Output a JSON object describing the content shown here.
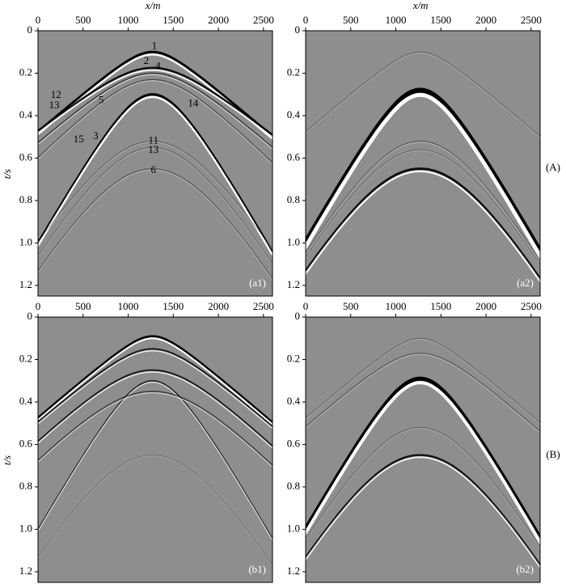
{
  "chart_data": [
    {
      "type": "image",
      "panel_label": "(a1)",
      "xlabel": "x/m",
      "ylabel": "t/s",
      "xlim": [
        0,
        2600
      ],
      "ylim": [
        0,
        1.25
      ],
      "xticks": [
        0,
        500,
        1000,
        1500,
        2000,
        2500
      ],
      "yticks": [
        0,
        0.2,
        0.4,
        0.6,
        0.8,
        {
          "value": 1,
          "label": "1.0"
        },
        1.2
      ],
      "annotations": [
        "1",
        "2",
        "4",
        "12",
        "13",
        "5",
        "14",
        "3",
        "15",
        "11",
        "13",
        "6"
      ]
    },
    {
      "type": "image",
      "panel_label": "(a2)",
      "xlabel": "x/m",
      "xlim": [
        0,
        2600
      ],
      "ylim": [
        0,
        1.25
      ],
      "xticks": [
        0,
        500,
        1000,
        1500,
        2000,
        2500
      ],
      "yticks": [
        0,
        0.2,
        0.4,
        0.6,
        0.8,
        {
          "value": 1,
          "label": "1.0"
        },
        1.2
      ]
    },
    {
      "type": "image",
      "panel_label": "(b1)",
      "ylabel": "t/s",
      "xlim": [
        0,
        2600
      ],
      "ylim": [
        0,
        1.25
      ],
      "xticks": [
        0,
        500,
        1000,
        1500,
        2000,
        2500
      ],
      "yticks": [
        0,
        0.2,
        0.4,
        0.6,
        0.8,
        {
          "value": 1,
          "label": "1.0"
        },
        1.2
      ]
    },
    {
      "type": "image",
      "panel_label": "(b2)",
      "xlim": [
        0,
        2600
      ],
      "ylim": [
        0,
        1.25
      ],
      "xticks": [
        0,
        500,
        1000,
        1500,
        2000,
        2500
      ],
      "yticks": [
        0,
        0.2,
        0.4,
        0.6,
        0.8,
        {
          "value": 1,
          "label": "1.0"
        },
        1.2
      ]
    }
  ],
  "row_labels": [
    "(A)",
    "(B)"
  ]
}
